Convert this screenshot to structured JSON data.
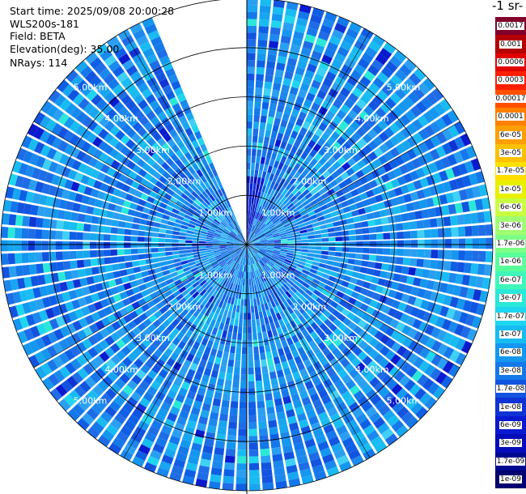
{
  "header": {
    "start_time": "Start time: 2025/09/08 20:00:28",
    "instrument": "WLS200s-181",
    "field": "Field: BETA",
    "elevation": "Elevation(deg): 35.00",
    "nrays": "NRays: 114"
  },
  "colorbar": {
    "title": "-1 sr-",
    "labels": [
      "0.0017",
      "0.001",
      "0.0006",
      "0.0003",
      "0.00017",
      "0.0001",
      "6e-05",
      "3e-05",
      "1.7e-05",
      "1e-05",
      "6e-06",
      "3e-06",
      "1.7e-06",
      "1e-06",
      "6e-07",
      "3e-07",
      "1.7e-07",
      "1e-07",
      "6e-08",
      "3e-08",
      "1.7e-08",
      "1e-08",
      "6e-09",
      "3e-09",
      "1.7e-09",
      "1e-09"
    ],
    "colors": [
      "#80002b",
      "#b30000",
      "#e10000",
      "#ff2000",
      "#ff5000",
      "#ff8000",
      "#ff9f00",
      "#ffc000",
      "#ffe000",
      "#e8f000",
      "#c8ff40",
      "#a0ff70",
      "#7cff86",
      "#58ff9a",
      "#3ff7b8",
      "#2ae8d8",
      "#1ed6ef",
      "#18bcf2",
      "#1497ef",
      "#1478ea",
      "#1253e0",
      "#0f33d4",
      "#0a1acf",
      "#050cb8",
      "#000890",
      "#000070"
    ]
  },
  "chart_data": {
    "type": "heatmap",
    "projection": "polar PPI",
    "field": "BETA",
    "elevation_deg": 35.0,
    "nrays": 114,
    "range_max_km": 5.0,
    "range_ring_labels": [
      "1.00km",
      "2.00km",
      "3.00km",
      "4.00km",
      "5.00km"
    ],
    "missing_sector_deg": [
      337,
      360
    ],
    "dominant_value": "3e-08 to 1.7e-07",
    "color_scale": "log"
  }
}
